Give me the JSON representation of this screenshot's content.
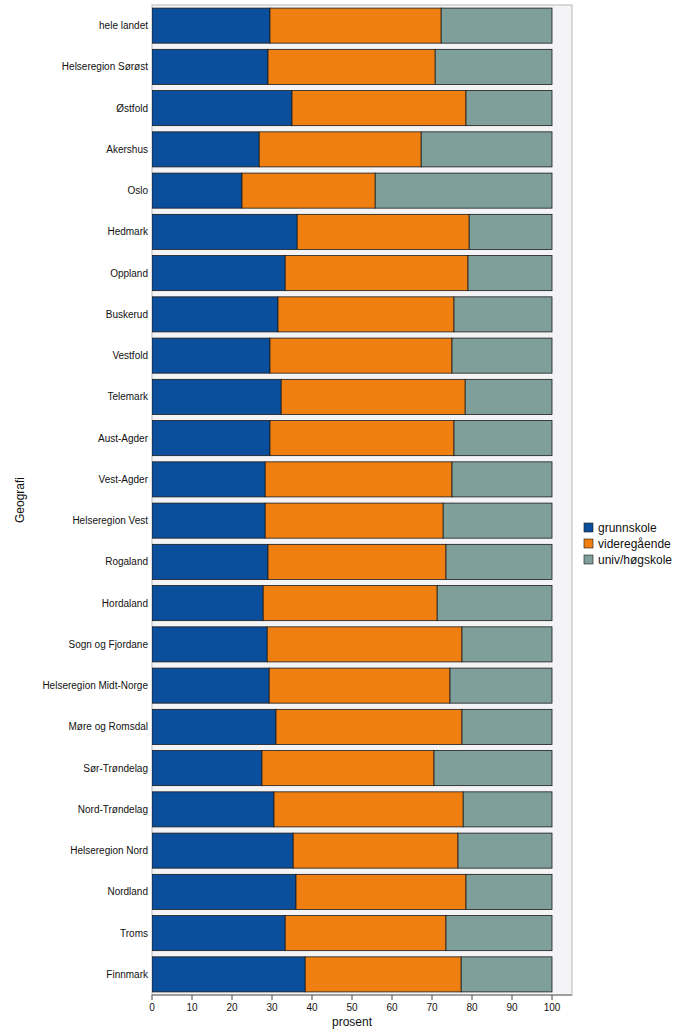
{
  "chart_data": {
    "type": "bar",
    "orientation": "horizontal",
    "stacked": true,
    "grid": false,
    "legend": "right",
    "data_labels": false,
    "x_label": "prosent",
    "y_label": "Geografi",
    "categories": [
      "hele landet",
      "Helseregion Sørøst",
      "Østfold",
      "Akershus",
      "Oslo",
      "Hedmark",
      "Oppland",
      "Buskerud",
      "Vestfold",
      "Telemark",
      "Aust-Agder",
      "Vest-Agder",
      "Helseregion Vest",
      "Rogaland",
      "Hordaland",
      "Sogn og Fjordane",
      "Helseregion Midt-Norge",
      "Møre og Romsdal",
      "Sør-Trøndelag",
      "Nord-Trøndelag",
      "Helseregion Nord",
      "Nordland",
      "Troms",
      "Finnmark"
    ],
    "series": [
      {
        "name": "grunnskole",
        "color": "#0b4f9c",
        "values": [
          29.5,
          29,
          35,
          26.8,
          22.5,
          36.3,
          33.3,
          31.5,
          29.5,
          32.3,
          29.5,
          28.3,
          28.3,
          29,
          27.8,
          28.8,
          29.3,
          31,
          27.5,
          30.5,
          35.3,
          36,
          33.3,
          38.3
        ]
      },
      {
        "name": "videregående",
        "color": "#f07f12",
        "values": [
          42.8,
          41.8,
          43.5,
          40.5,
          33.3,
          43,
          45.7,
          44,
          45.5,
          46,
          46,
          46.7,
          44.5,
          44.5,
          43.5,
          48.7,
          45.2,
          46.5,
          43,
          47.3,
          41.2,
          42.5,
          40.2,
          39
        ]
      },
      {
        "name": "univ/høgskole",
        "color": "#7f9f9b",
        "values": [
          27.7,
          29.2,
          21.5,
          32.7,
          44.2,
          20.7,
          21,
          24.5,
          25,
          21.7,
          24.5,
          25,
          27.2,
          26.5,
          28.7,
          22.5,
          25.5,
          22.5,
          29.5,
          22.2,
          23.5,
          21.5,
          26.5,
          22.7
        ]
      }
    ],
    "xlim": [
      0,
      105
    ],
    "xticks": [
      0,
      10,
      20,
      30,
      40,
      50,
      60,
      70,
      80,
      90,
      100
    ]
  }
}
